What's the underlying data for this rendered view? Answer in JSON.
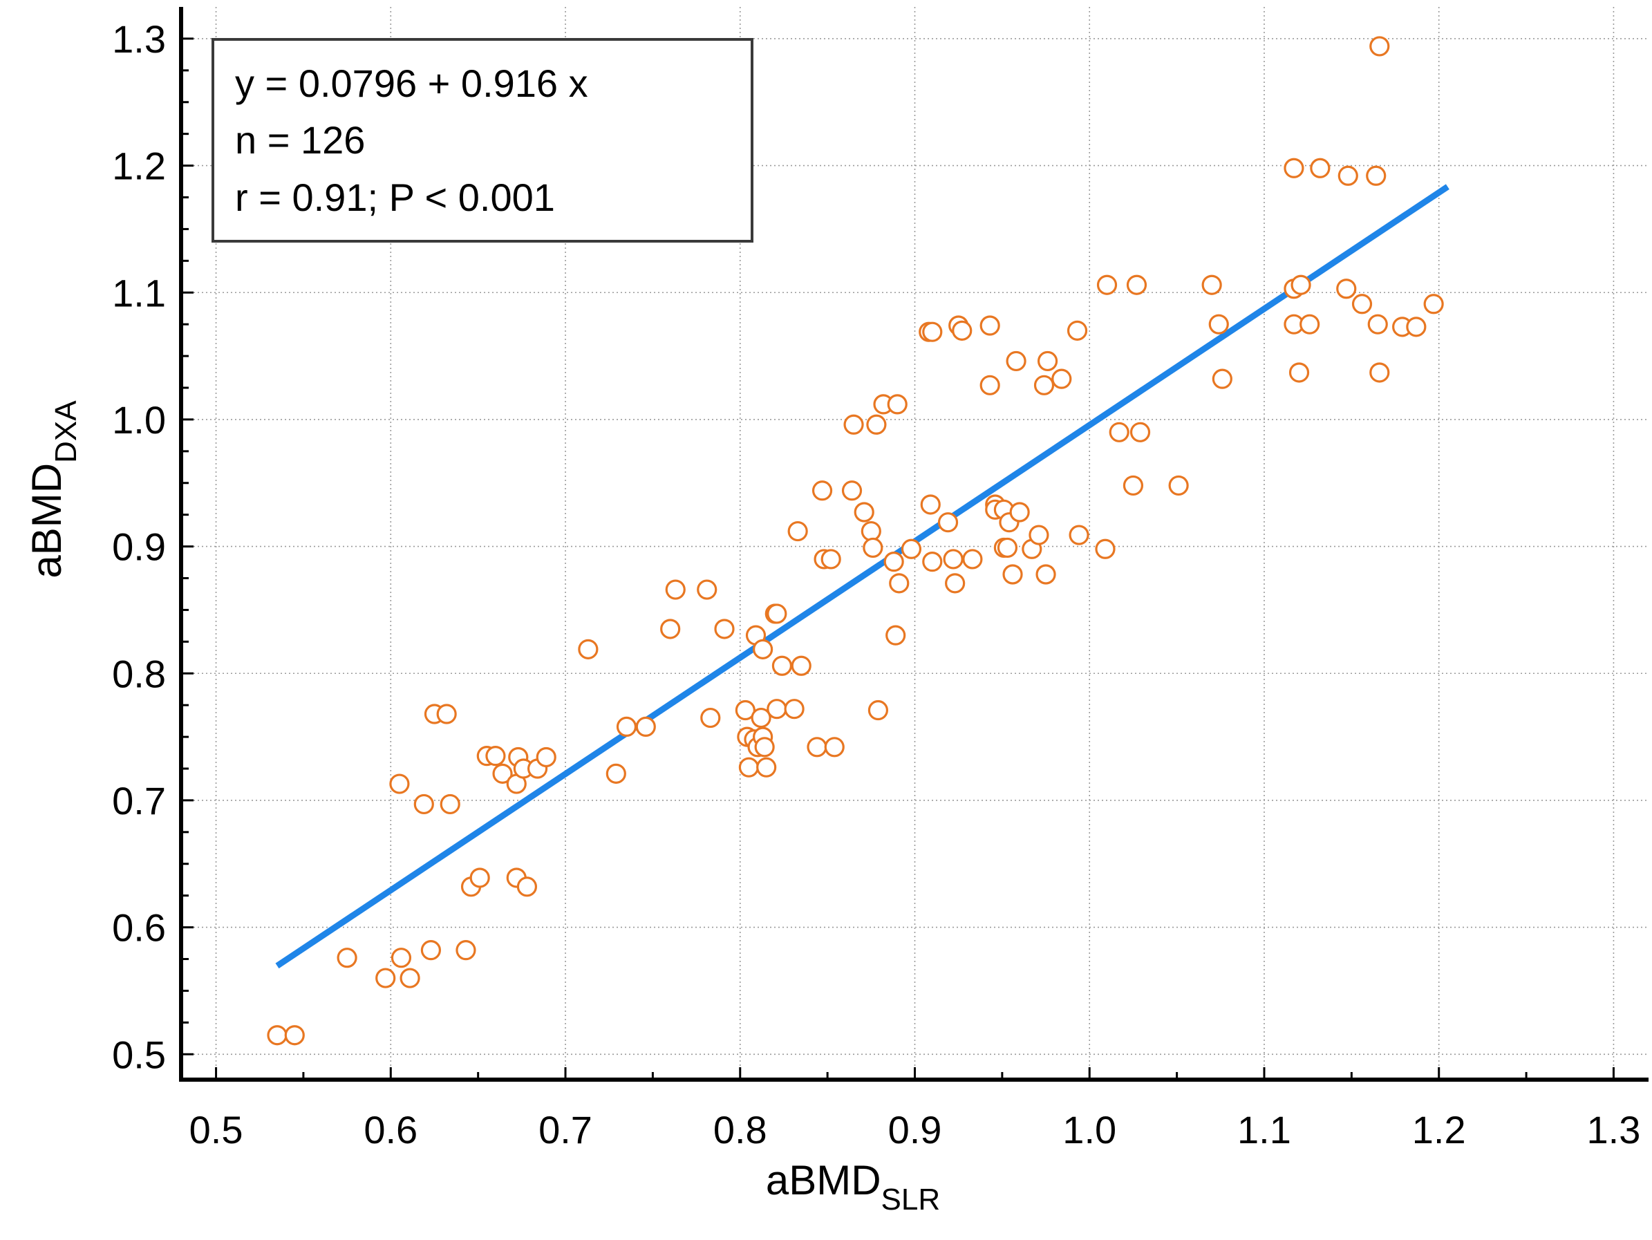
{
  "chart_data": {
    "type": "scatter",
    "xlabel": "aBMD",
    "xlabel_sub": "SLR",
    "ylabel": "aBMD",
    "ylabel_sub": "DXA",
    "xlim": [
      0.48,
      1.32
    ],
    "ylim": [
      0.48,
      1.325
    ],
    "xticks": [
      "0.5",
      "0.6",
      "0.7",
      "0.8",
      "0.9",
      "1.0",
      "1.1",
      "1.2",
      "1.3"
    ],
    "yticks": [
      "0.5",
      "0.6",
      "0.7",
      "0.8",
      "0.9",
      "1.0",
      "1.1",
      "1.2",
      "1.3"
    ],
    "grid": true,
    "marker_color": "#e87722",
    "line_color": "#1f85e8",
    "annotation": {
      "equation": "y = 0.0796 + 0.916 x",
      "n": "n = 126",
      "r": "r = 0.91; P < 0.001"
    },
    "regression": {
      "intercept": 0.0796,
      "slope": 0.916,
      "x_range": [
        0.535,
        1.205
      ]
    },
    "points": [
      [
        0.535,
        0.515
      ],
      [
        0.545,
        0.515
      ],
      [
        0.575,
        0.576
      ],
      [
        0.597,
        0.56
      ],
      [
        0.606,
        0.576
      ],
      [
        0.611,
        0.56
      ],
      [
        0.605,
        0.713
      ],
      [
        0.619,
        0.697
      ],
      [
        0.623,
        0.582
      ],
      [
        0.625,
        0.768
      ],
      [
        0.632,
        0.768
      ],
      [
        0.634,
        0.697
      ],
      [
        0.643,
        0.582
      ],
      [
        0.646,
        0.632
      ],
      [
        0.651,
        0.639
      ],
      [
        0.655,
        0.735
      ],
      [
        0.66,
        0.735
      ],
      [
        0.664,
        0.721
      ],
      [
        0.672,
        0.713
      ],
      [
        0.672,
        0.639
      ],
      [
        0.673,
        0.734
      ],
      [
        0.676,
        0.725
      ],
      [
        0.678,
        0.632
      ],
      [
        0.684,
        0.725
      ],
      [
        0.689,
        0.734
      ],
      [
        0.713,
        0.819
      ],
      [
        0.729,
        0.721
      ],
      [
        0.735,
        0.758
      ],
      [
        0.746,
        0.758
      ],
      [
        0.76,
        0.835
      ],
      [
        0.763,
        0.866
      ],
      [
        0.781,
        0.866
      ],
      [
        0.783,
        0.765
      ],
      [
        0.791,
        0.835
      ],
      [
        0.803,
        0.771
      ],
      [
        0.804,
        0.75
      ],
      [
        0.805,
        0.726
      ],
      [
        0.808,
        0.748
      ],
      [
        0.809,
        0.83
      ],
      [
        0.81,
        0.742
      ],
      [
        0.812,
        0.765
      ],
      [
        0.813,
        0.75
      ],
      [
        0.813,
        0.819
      ],
      [
        0.814,
        0.742
      ],
      [
        0.815,
        0.726
      ],
      [
        0.82,
        0.847
      ],
      [
        0.821,
        0.847
      ],
      [
        0.821,
        0.772
      ],
      [
        0.824,
        0.806
      ],
      [
        0.831,
        0.772
      ],
      [
        0.833,
        0.912
      ],
      [
        0.835,
        0.806
      ],
      [
        0.844,
        0.742
      ],
      [
        0.847,
        0.944
      ],
      [
        0.848,
        0.89
      ],
      [
        0.852,
        0.89
      ],
      [
        0.854,
        0.742
      ],
      [
        0.864,
        0.944
      ],
      [
        0.865,
        0.996
      ],
      [
        0.871,
        0.927
      ],
      [
        0.875,
        0.912
      ],
      [
        0.876,
        0.899
      ],
      [
        0.878,
        0.996
      ],
      [
        0.879,
        0.771
      ],
      [
        0.882,
        1.012
      ],
      [
        0.888,
        0.888
      ],
      [
        0.889,
        0.83
      ],
      [
        0.89,
        1.012
      ],
      [
        0.891,
        0.871
      ],
      [
        0.898,
        0.898
      ],
      [
        0.908,
        1.069
      ],
      [
        0.909,
        0.933
      ],
      [
        0.91,
        1.069
      ],
      [
        0.91,
        0.888
      ],
      [
        0.919,
        0.919
      ],
      [
        0.922,
        0.89
      ],
      [
        0.923,
        0.871
      ],
      [
        0.925,
        1.074
      ],
      [
        0.927,
        1.07
      ],
      [
        0.933,
        0.89
      ],
      [
        0.943,
        1.074
      ],
      [
        0.943,
        1.027
      ],
      [
        0.946,
        0.933
      ],
      [
        0.946,
        0.929
      ],
      [
        0.951,
        0.929
      ],
      [
        0.951,
        0.899
      ],
      [
        0.953,
        0.899
      ],
      [
        0.954,
        0.919
      ],
      [
        0.956,
        0.878
      ],
      [
        0.958,
        1.046
      ],
      [
        0.96,
        0.927
      ],
      [
        0.967,
        0.898
      ],
      [
        0.971,
        0.909
      ],
      [
        0.974,
        1.027
      ],
      [
        0.975,
        0.878
      ],
      [
        0.976,
        1.046
      ],
      [
        0.984,
        1.032
      ],
      [
        0.993,
        1.07
      ],
      [
        0.994,
        0.909
      ],
      [
        1.009,
        0.898
      ],
      [
        1.01,
        1.106
      ],
      [
        1.017,
        0.99
      ],
      [
        1.025,
        0.948
      ],
      [
        1.027,
        1.106
      ],
      [
        1.029,
        0.99
      ],
      [
        1.051,
        0.948
      ],
      [
        1.07,
        1.106
      ],
      [
        1.074,
        1.075
      ],
      [
        1.076,
        1.032
      ],
      [
        1.117,
        1.198
      ],
      [
        1.117,
        1.103
      ],
      [
        1.117,
        1.075
      ],
      [
        1.12,
        1.037
      ],
      [
        1.121,
        1.106
      ],
      [
        1.126,
        1.075
      ],
      [
        1.132,
        1.198
      ],
      [
        1.147,
        1.103
      ],
      [
        1.148,
        1.192
      ],
      [
        1.156,
        1.091
      ],
      [
        1.164,
        1.192
      ],
      [
        1.165,
        1.075
      ],
      [
        1.166,
        1.037
      ],
      [
        1.166,
        1.294
      ],
      [
        1.179,
        1.073
      ],
      [
        1.187,
        1.073
      ],
      [
        1.197,
        1.091
      ]
    ]
  }
}
